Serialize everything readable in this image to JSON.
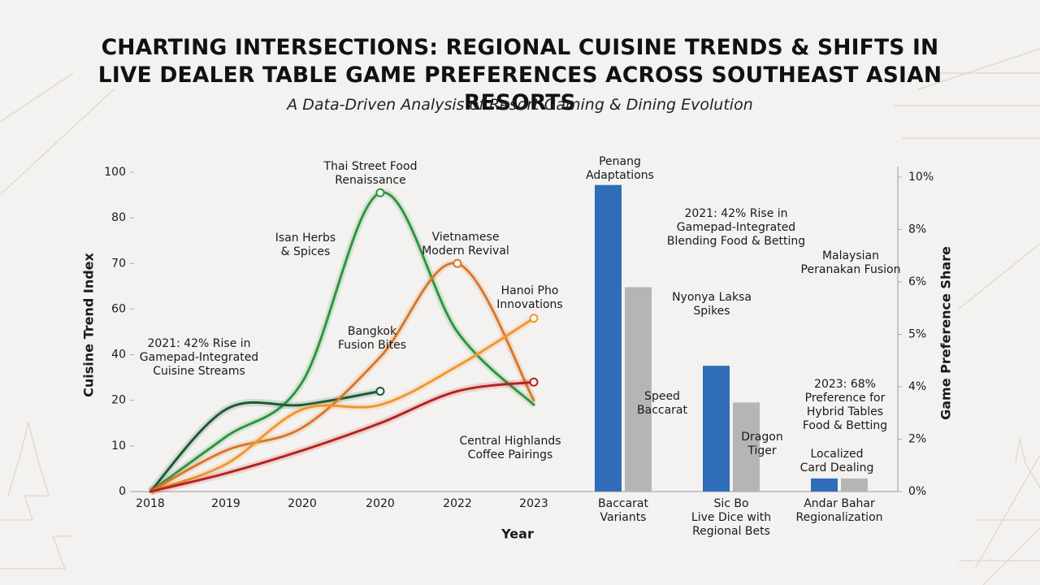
{
  "chart_data": {
    "type": "line",
    "title": "CHARTING INTERSECTIONS: REGIONAL CUISINE TRENDS & SHIFTS IN LIVE DEALER TABLE GAME PREFERENCES ACROSS SOUTHEAST ASIAN RESORTS",
    "subtitle": "A Data-Driven Analysis of Resort Gaming & Dining Evolution",
    "x_label": "Year",
    "y_label": "Cuisine Trend Index",
    "y2_label": "Game Preference Share",
    "categories": [
      "2018",
      "2019",
      "2020",
      "2020",
      "2022",
      "2023",
      "Baccarat\nVariants",
      "Sic Bo\nLive Dice with\nRegional Bets",
      "Andar Bahar\nRegionalization"
    ],
    "ylim": [
      0,
      100
    ],
    "yticks": [
      0,
      10,
      20,
      40,
      60,
      70,
      80,
      100
    ],
    "y2lim": [
      0,
      10
    ],
    "y2ticks": [
      {
        "value": 0,
        "label": "0%"
      },
      {
        "value": 2,
        "label": "2%"
      },
      {
        "value": 4,
        "label": "4%"
      },
      {
        "value": 5,
        "label": "5%"
      },
      {
        "value": 6,
        "label": "6%"
      },
      {
        "value": 8,
        "label": "8%"
      },
      {
        "value": 10,
        "label": "10%"
      }
    ],
    "series": [
      {
        "type": "line",
        "color": "#2f9440",
        "values": [
          0,
          12,
          28,
          91,
          50,
          19,
          null,
          null,
          null
        ]
      },
      {
        "type": "line",
        "color": "#1d5a34",
        "values": [
          0,
          18,
          19,
          24,
          null,
          null,
          null,
          null,
          null
        ]
      },
      {
        "type": "line",
        "color": "#d9772b",
        "values": [
          0,
          9,
          14,
          39,
          70,
          20,
          null,
          null,
          null
        ]
      },
      {
        "type": "line",
        "color": "#f0962f",
        "values": [
          0,
          6,
          18,
          19,
          35,
          56,
          null,
          null,
          null
        ]
      },
      {
        "type": "line",
        "color": "#b8221f",
        "values": [
          0,
          4,
          9,
          15,
          24,
          28,
          null,
          null,
          null
        ]
      },
      {
        "type": "bar",
        "axis": "y2",
        "color": "#2f6db8",
        "values": [
          null,
          null,
          null,
          null,
          null,
          null,
          9.7,
          4.4,
          0.5
        ]
      },
      {
        "type": "bar",
        "axis": "y2",
        "color": "#b5b5b5",
        "values": [
          null,
          null,
          null,
          null,
          null,
          null,
          5.9,
          3.4,
          0.5
        ]
      }
    ],
    "annotations": [
      "2021: 42% Rise in\nGamepad-Integrated\nCuisine Streams",
      "Isan Herbs\n& Spices",
      "Thai Street Food\nRenaissance",
      "Bangkok\nFusion Bites",
      "Vietnamese\nModern Revival",
      "Hanoi Pho\nInnovations",
      "Central Highlands\nCoffee Pairings",
      "Penang\nAdaptations",
      "Speed\nBaccarat",
      "2021: 42% Rise in\nGamepad-Integrated\nBlending Food & Betting",
      "Nyonya Laksa\nSpikes",
      "Malaysian\nPeranakan Fusion",
      "Dragon\nTiger",
      "2023: 68%\nPreference for\nHybrid Tables\nFood & Betting",
      "Localized\nCard Dealing"
    ]
  }
}
